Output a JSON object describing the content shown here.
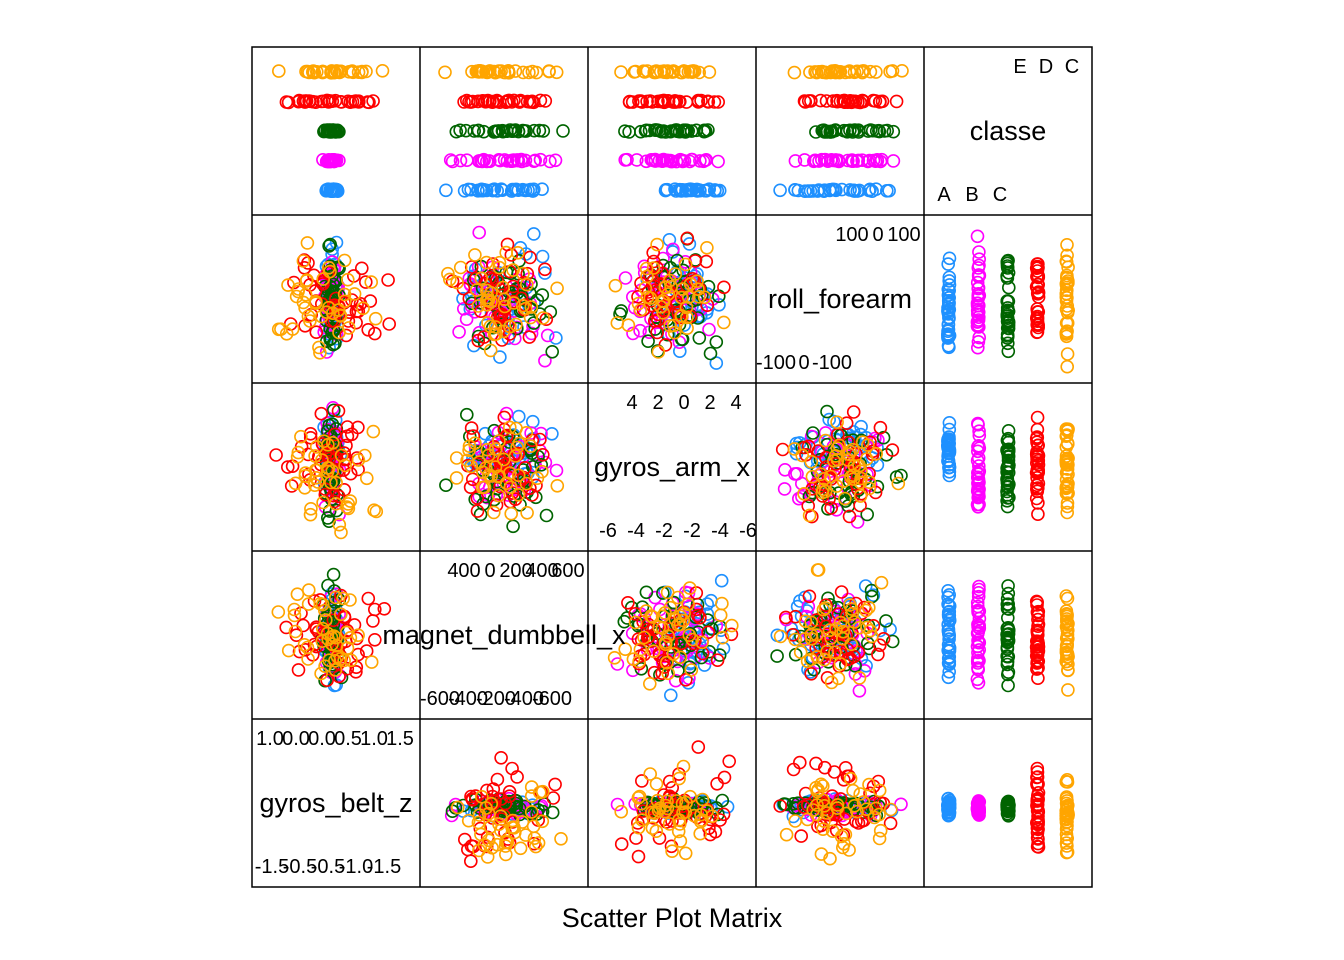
{
  "chart_data": {
    "type": "scatter",
    "subtype": "scatter-plot-matrix",
    "xlabel": "Scatter Plot Matrix",
    "variables": [
      {
        "name": "gyros_belt_z",
        "range": [
          -1.6,
          1.7
        ],
        "ticks": [
          -1.5,
          -1.0,
          -0.5,
          0.0,
          0.5,
          1.0,
          1.5
        ],
        "labels_low": [
          "-1.5",
          "-0.5",
          "-0.5",
          "-1.0",
          "-1.5"
        ],
        "labels_high": [
          "1.5",
          "1.0",
          "0.5",
          "0.0",
          "0.0",
          "1.0"
        ]
      },
      {
        "name": "magnet_dumbbell_x",
        "range": [
          -680,
          680
        ],
        "ticks": [
          -600,
          -400,
          -200,
          0,
          200,
          400,
          600
        ],
        "labels_low": [
          "-600",
          "-400",
          "-200",
          "-400",
          "-600"
        ],
        "labels_high": [
          "600",
          "400",
          "200",
          "0",
          "400"
        ]
      },
      {
        "name": "gyros_arm_x",
        "range": [
          -6.6,
          5.4
        ],
        "ticks": [
          -6,
          -4,
          -2,
          0,
          2,
          4
        ],
        "labels_low": [
          "-6",
          "-4",
          "-2",
          "-2",
          "-4",
          "-6"
        ],
        "labels_high": [
          "4",
          "2",
          "0",
          "2",
          "4"
        ]
      },
      {
        "name": "roll_forearm",
        "range": [
          -180,
          180
        ],
        "ticks": [
          -100,
          0,
          100
        ],
        "labels_low": [
          "-100",
          "0",
          "-100"
        ],
        "labels_high": [
          "100",
          "0",
          "100"
        ]
      },
      {
        "name": "classe",
        "categories": [
          "A",
          "B",
          "C",
          "D",
          "E"
        ],
        "labels_low": [
          "A",
          "B",
          "C"
        ],
        "labels_high": [
          "C",
          "D",
          "E"
        ]
      }
    ],
    "classes": [
      {
        "label": "A",
        "color": "#1E90FF"
      },
      {
        "label": "B",
        "color": "#FF00FF"
      },
      {
        "label": "C",
        "color": "#006400"
      },
      {
        "label": "D",
        "color": "#FF0000"
      },
      {
        "label": "E",
        "color": "#FFA500"
      }
    ],
    "class_ranges": {
      "gyros_belt_z": [
        [
          -0.3,
          0.2
        ],
        [
          -0.3,
          0.2
        ],
        [
          -0.3,
          0.2
        ],
        [
          -1.55,
          1.5
        ],
        [
          -1.6,
          1.2
        ]
      ],
      "magnet_dumbbell_x": [
        [
          -600,
          620
        ],
        [
          -620,
          620
        ],
        [
          -620,
          620
        ],
        [
          -620,
          600
        ],
        [
          -640,
          620
        ]
      ],
      "gyros_arm_x": [
        [
          -3,
          4.5
        ],
        [
          -6,
          4.8
        ],
        [
          -6.2,
          5
        ],
        [
          -6.2,
          5
        ],
        [
          -6.5,
          5
        ]
      ],
      "roll_forearm": [
        [
          -180,
          180
        ],
        [
          -180,
          180
        ],
        [
          -180,
          180
        ],
        [
          -180,
          180
        ],
        [
          -180,
          180
        ]
      ]
    },
    "grid": false,
    "legend": "none"
  }
}
